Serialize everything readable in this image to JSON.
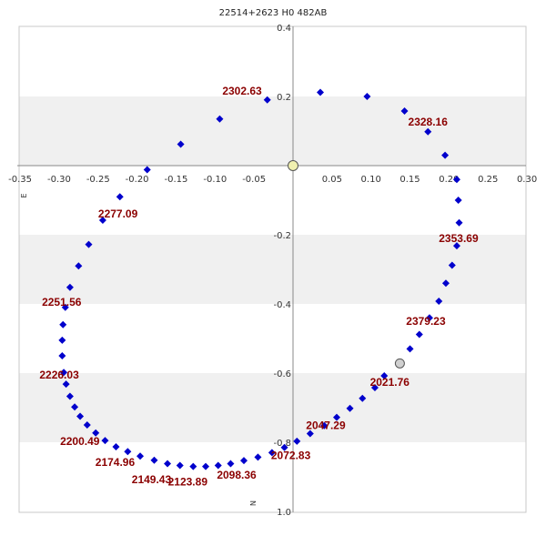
{
  "chart_data": {
    "type": "scatter",
    "title": "22514+2623 H0  482AB",
    "xlabel": "",
    "ylabel": "",
    "xlim": [
      -0.35,
      0.3
    ],
    "ylim": [
      1.0,
      0.4
    ],
    "x_ticks": [
      "-0.35",
      "-0.30",
      "-0.25",
      "-0.20",
      "-0.15",
      "-0.10",
      "-0.05",
      "0",
      "0.05",
      "0.10",
      "0.15",
      "0.20",
      "0.25",
      "0.30"
    ],
    "y_ticks": [
      "0.4",
      "0.2",
      "-0.2",
      "-0.4",
      "-0.6",
      "-0.8",
      "1.0"
    ],
    "compass": {
      "east": "E",
      "north": "N"
    },
    "grid": true,
    "colors": {
      "points": "#0000cc",
      "labels": "#8b0000",
      "origin": "#f0f0b0",
      "observed": "#d0d0d0",
      "band": "#f0f0f0"
    },
    "origin": {
      "x": 0,
      "y": 0
    },
    "observed_point": {
      "x": 0.137,
      "y": -0.572
    },
    "series": [
      {
        "points": [
          [
            0.035,
            0.212
          ],
          [
            0.095,
            0.2
          ],
          [
            0.143,
            0.158
          ],
          [
            0.173,
            0.098
          ],
          [
            0.195,
            0.03
          ],
          [
            0.21,
            -0.04
          ],
          [
            0.212,
            -0.1
          ],
          [
            0.213,
            -0.165
          ],
          [
            0.21,
            -0.232
          ],
          [
            0.204,
            -0.288
          ],
          [
            0.196,
            -0.34
          ],
          [
            0.187,
            -0.392
          ],
          [
            0.175,
            -0.44
          ],
          [
            0.162,
            -0.488
          ],
          [
            0.15,
            -0.53
          ],
          [
            0.117,
            -0.608
          ],
          [
            0.105,
            -0.642
          ],
          [
            0.089,
            -0.673
          ],
          [
            0.073,
            -0.702
          ],
          [
            0.056,
            -0.728
          ],
          [
            0.04,
            -0.752
          ],
          [
            0.022,
            -0.775
          ],
          [
            0.005,
            -0.797
          ],
          [
            -0.011,
            -0.815
          ],
          [
            -0.027,
            -0.83
          ],
          [
            -0.045,
            -0.843
          ],
          [
            -0.063,
            -0.853
          ],
          [
            -0.08,
            -0.862
          ],
          [
            -0.096,
            -0.867
          ],
          [
            -0.112,
            -0.87
          ],
          [
            -0.128,
            -0.87
          ],
          [
            -0.145,
            -0.867
          ],
          [
            -0.161,
            -0.862
          ],
          [
            -0.178,
            -0.852
          ],
          [
            -0.196,
            -0.84
          ],
          [
            -0.212,
            -0.827
          ],
          [
            -0.227,
            -0.813
          ],
          [
            -0.241,
            -0.795
          ],
          [
            -0.253,
            -0.773
          ],
          [
            -0.264,
            -0.75
          ],
          [
            -0.273,
            -0.725
          ],
          [
            -0.28,
            -0.698
          ],
          [
            -0.286,
            -0.667
          ],
          [
            -0.291,
            -0.632
          ],
          [
            -0.294,
            -0.598
          ],
          [
            -0.296,
            -0.55
          ],
          [
            -0.296,
            -0.505
          ],
          [
            -0.295,
            -0.46
          ],
          [
            -0.292,
            -0.41
          ],
          [
            -0.286,
            -0.352
          ],
          [
            -0.275,
            -0.29
          ],
          [
            -0.262,
            -0.228
          ],
          [
            -0.244,
            -0.158
          ],
          [
            -0.222,
            -0.09
          ],
          [
            -0.187,
            -0.012
          ],
          [
            -0.144,
            0.062
          ],
          [
            -0.094,
            0.135
          ],
          [
            -0.033,
            0.19
          ]
        ]
      }
    ],
    "annotations": [
      {
        "text": "2302.63",
        "x": -0.033,
        "y": 0.19,
        "anchor": "end",
        "dx": -6,
        "dy": -6
      },
      {
        "text": "2328.16",
        "x": 0.143,
        "y": 0.158,
        "anchor": "start",
        "dx": 4,
        "dy": 16
      },
      {
        "text": "2353.69",
        "x": 0.21,
        "y": -0.232,
        "anchor": "middle",
        "dx": 2,
        "dy": -4
      },
      {
        "text": "2379.23",
        "x": 0.175,
        "y": -0.44,
        "anchor": "middle",
        "dx": -4,
        "dy": 8
      },
      {
        "text": "2021.76",
        "x": 0.117,
        "y": -0.608,
        "anchor": "middle",
        "dx": 6,
        "dy": 11
      },
      {
        "text": "2047.29",
        "x": 0.056,
        "y": -0.728,
        "anchor": "middle",
        "dx": -12,
        "dy": 13
      },
      {
        "text": "2072.83",
        "x": -0.011,
        "y": -0.815,
        "anchor": "middle",
        "dx": 7,
        "dy": 13
      },
      {
        "text": "2098.36",
        "x": -0.063,
        "y": -0.853,
        "anchor": "middle",
        "dx": -8,
        "dy": 20
      },
      {
        "text": "2123.89",
        "x": -0.128,
        "y": -0.87,
        "anchor": "middle",
        "dx": -6,
        "dy": 21
      },
      {
        "text": "2149.43",
        "x": -0.178,
        "y": -0.852,
        "anchor": "middle",
        "dx": -3,
        "dy": 25
      },
      {
        "text": "2174.96",
        "x": -0.227,
        "y": -0.813,
        "anchor": "middle",
        "dx": -1,
        "dy": 21
      },
      {
        "text": "2200.49",
        "x": -0.264,
        "y": -0.75,
        "anchor": "middle",
        "dx": -8,
        "dy": 22
      },
      {
        "text": "2226.03",
        "x": -0.294,
        "y": -0.598,
        "anchor": "middle",
        "dx": -5,
        "dy": 7
      },
      {
        "text": "2251.56",
        "x": -0.292,
        "y": -0.41,
        "anchor": "middle",
        "dx": -4,
        "dy": -2
      },
      {
        "text": "2277.09",
        "x": -0.244,
        "y": -0.158,
        "anchor": "start",
        "dx": -5,
        "dy": -3
      }
    ]
  }
}
